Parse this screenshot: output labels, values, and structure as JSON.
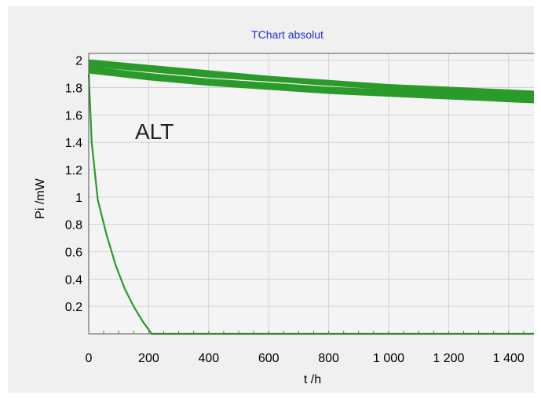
{
  "chart_data": {
    "type": "line",
    "title": "TChart absolut",
    "xlabel": "t /h",
    "ylabel": "Pi /mW",
    "xlim": [
      0,
      1500
    ],
    "ylim": [
      0,
      2.05
    ],
    "grid": true,
    "annotation": "ALT",
    "x_ticks": [
      0,
      200,
      400,
      600,
      800,
      1000,
      1200,
      1400
    ],
    "x_tick_labels": [
      "0",
      "200",
      "400",
      "600",
      "800",
      "1 000",
      "1 200",
      "1 400"
    ],
    "y_ticks": [
      0.2,
      0.4,
      0.6,
      0.8,
      1,
      1.2,
      1.4,
      1.6,
      1.8,
      2
    ],
    "y_tick_labels": [
      "0.2",
      "0.4",
      "0.6",
      "0.8",
      "1",
      "1.2",
      "1.4",
      "1.6",
      "1.8",
      "2"
    ],
    "line_color": "#2a9a2a",
    "series": [
      {
        "x": [
          0,
          200,
          400,
          600,
          800,
          1000,
          1200,
          1400,
          1500
        ],
        "y": [
          2.0,
          1.96,
          1.92,
          1.88,
          1.85,
          1.82,
          1.8,
          1.78,
          1.77
        ]
      },
      {
        "x": [
          0,
          200,
          400,
          600,
          800,
          1000,
          1200,
          1400,
          1500
        ],
        "y": [
          1.98,
          1.94,
          1.9,
          1.86,
          1.83,
          1.8,
          1.78,
          1.76,
          1.75
        ]
      },
      {
        "x": [
          0,
          200,
          400,
          600,
          800,
          1000,
          1200,
          1400,
          1500
        ],
        "y": [
          1.96,
          1.92,
          1.88,
          1.85,
          1.82,
          1.79,
          1.77,
          1.75,
          1.74
        ]
      },
      {
        "x": [
          0,
          200,
          400,
          600,
          800,
          1000,
          1200,
          1400,
          1500
        ],
        "y": [
          1.95,
          1.9,
          1.86,
          1.83,
          1.8,
          1.78,
          1.76,
          1.74,
          1.73
        ]
      },
      {
        "x": [
          0,
          200,
          400,
          600,
          800,
          1000,
          1200,
          1400,
          1500
        ],
        "y": [
          1.93,
          1.88,
          1.84,
          1.81,
          1.78,
          1.76,
          1.74,
          1.72,
          1.71
        ]
      },
      {
        "x": [
          0,
          200,
          400,
          600,
          800,
          1000,
          1200,
          1400,
          1500
        ],
        "y": [
          1.92,
          1.87,
          1.83,
          1.8,
          1.77,
          1.75,
          1.73,
          1.71,
          1.7
        ]
      },
      {
        "x": [
          0,
          200,
          400,
          600,
          800,
          1000,
          1200,
          1400,
          1500
        ],
        "y": [
          1.99,
          1.95,
          1.91,
          1.87,
          1.84,
          1.81,
          1.79,
          1.77,
          1.76
        ]
      },
      {
        "x": [
          0,
          200,
          400,
          600,
          800,
          1000,
          1200,
          1400,
          1500
        ],
        "y": [
          1.97,
          1.93,
          1.89,
          1.86,
          1.82,
          1.8,
          1.77,
          1.75,
          1.74
        ]
      },
      {
        "x": [
          0,
          200,
          400,
          600,
          800,
          1000,
          1200,
          1400,
          1500
        ],
        "y": [
          1.94,
          1.89,
          1.85,
          1.82,
          1.79,
          1.77,
          1.75,
          1.73,
          1.72
        ]
      },
      {
        "x": [
          0,
          200,
          400,
          600,
          800,
          1000,
          1200,
          1400,
          1500
        ],
        "y": [
          1.91,
          1.86,
          1.82,
          1.79,
          1.76,
          1.74,
          1.72,
          1.7,
          1.69
        ]
      },
      {
        "x": [
          0,
          10,
          30,
          60,
          90,
          120,
          150,
          180,
          210,
          300,
          600,
          1000,
          1500
        ],
        "y": [
          1.9,
          1.4,
          0.98,
          0.72,
          0.5,
          0.33,
          0.2,
          0.09,
          0.0,
          0.0,
          0.0,
          0.0,
          0.0
        ]
      }
    ]
  }
}
